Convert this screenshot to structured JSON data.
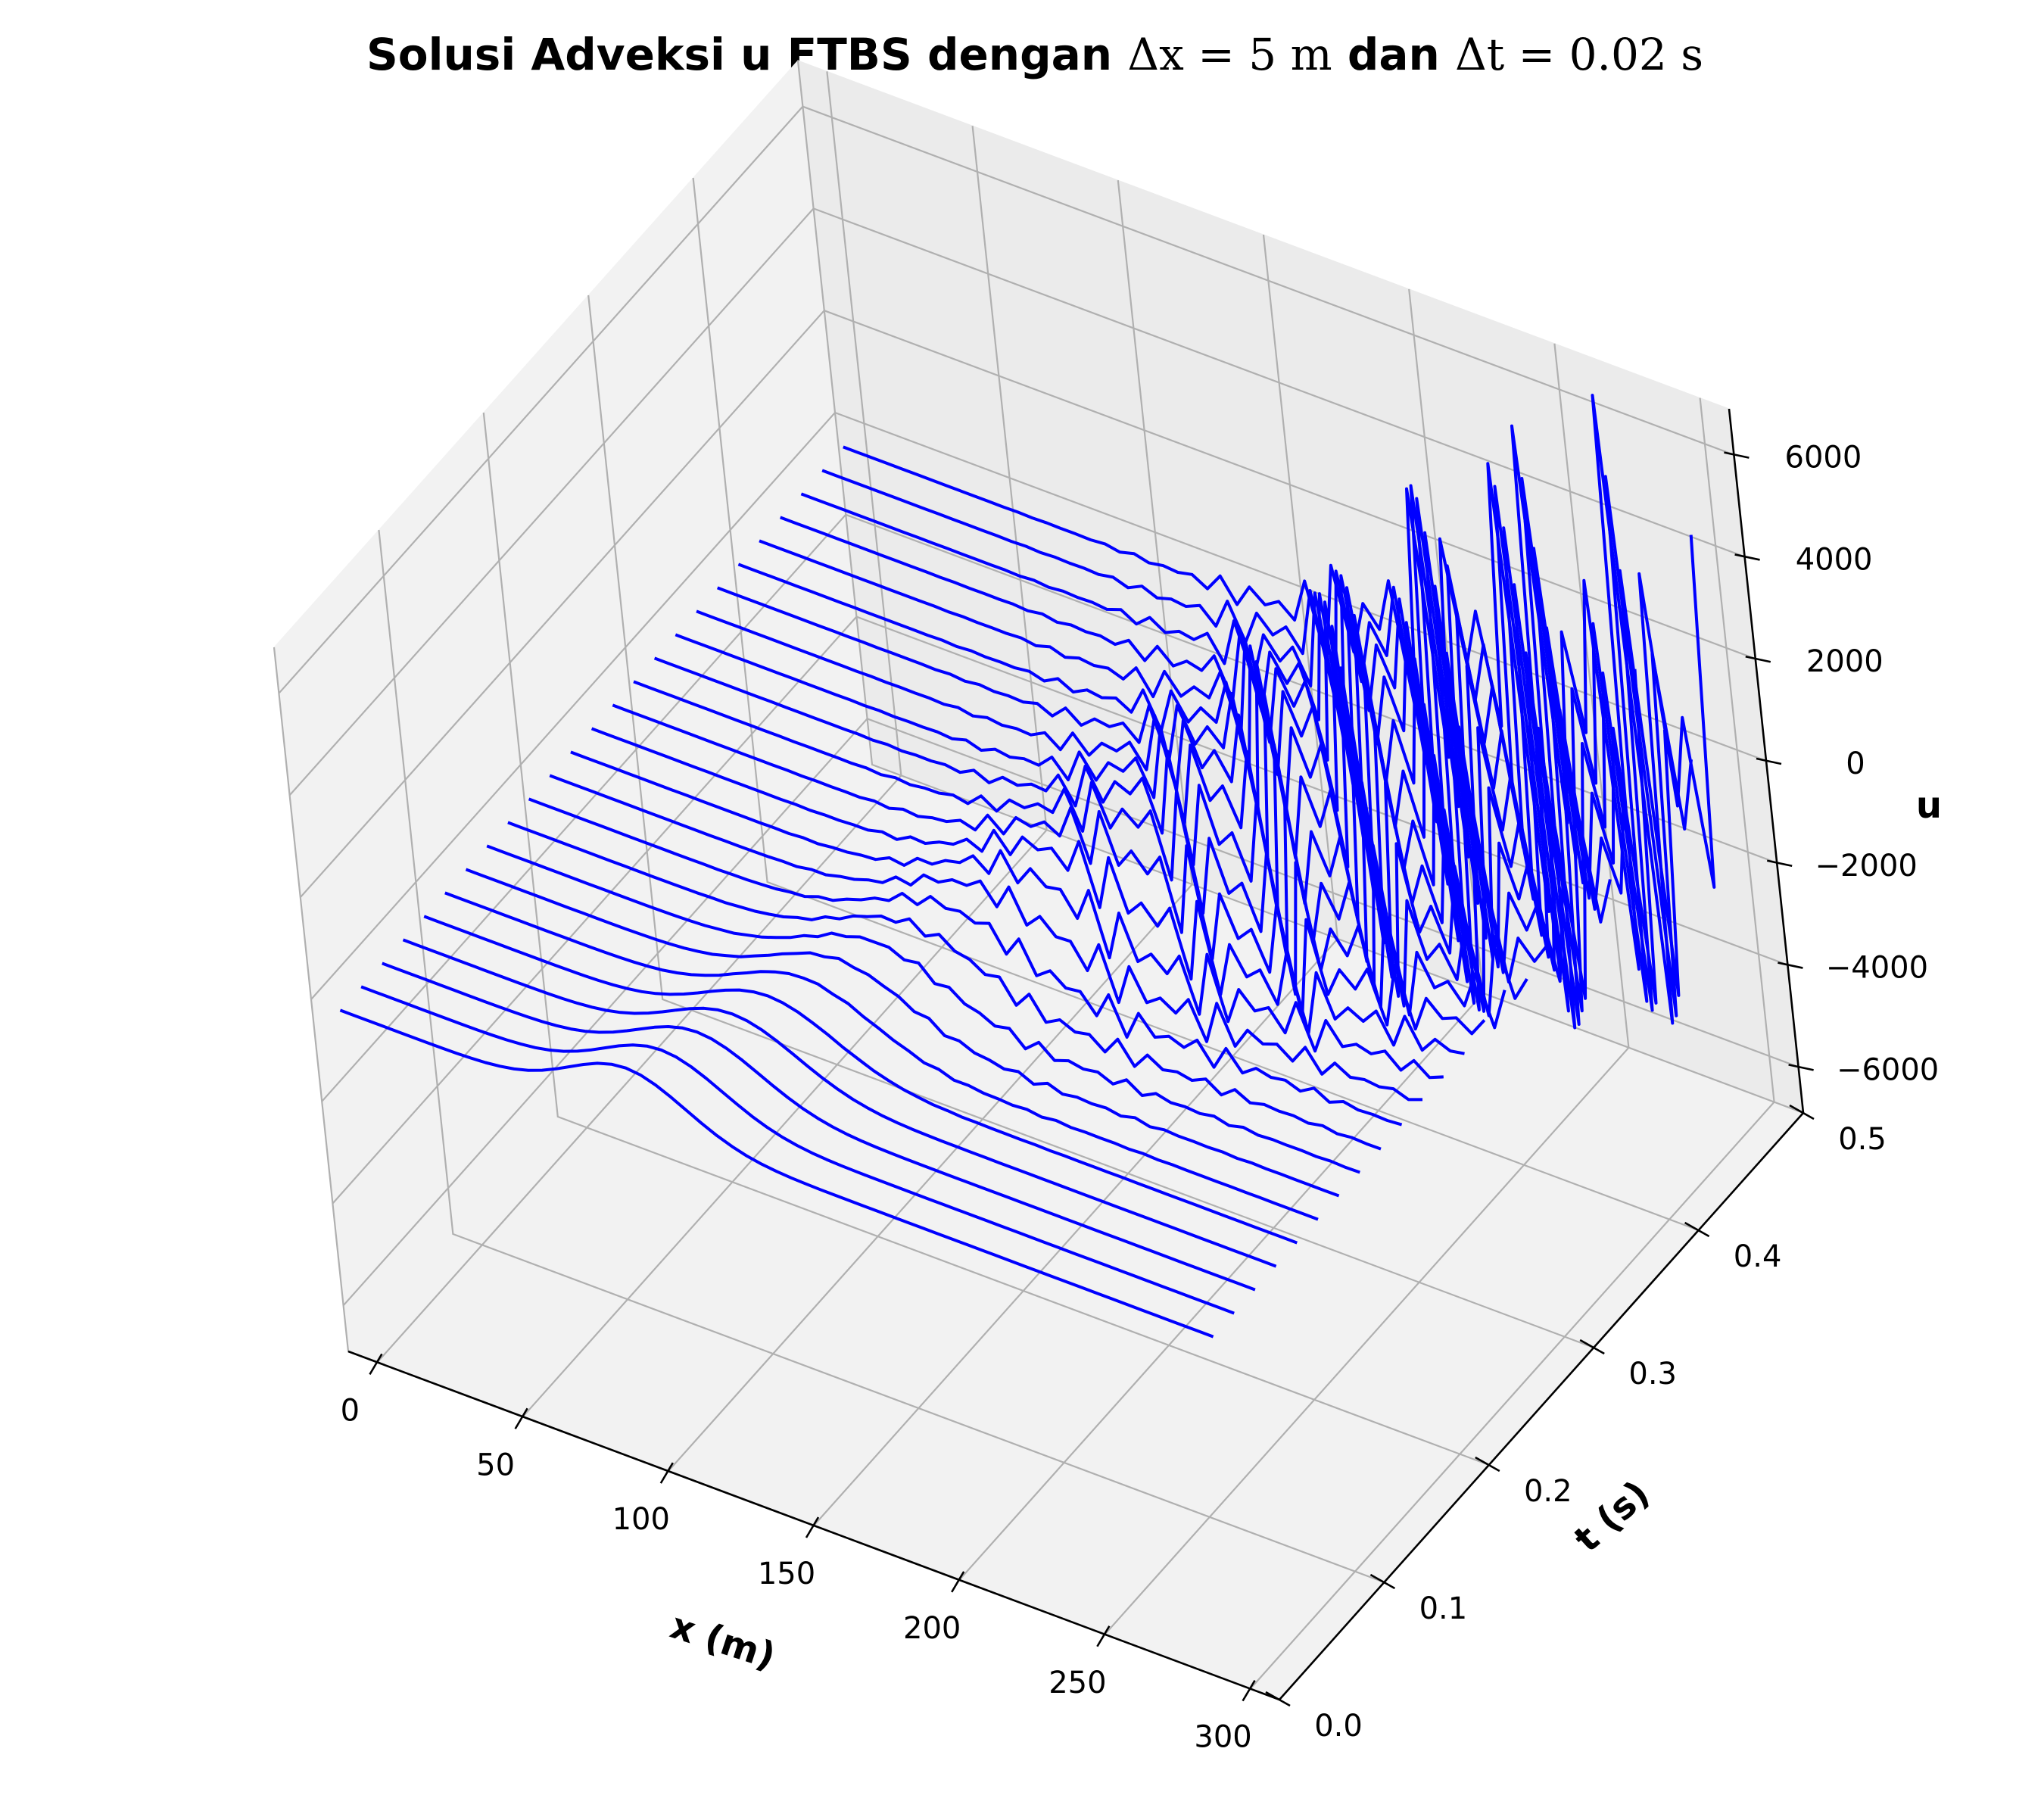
{
  "chart_data": {
    "type": "line",
    "title": {
      "prefix": "Solusi Adveksi u FTBS dengan ",
      "dx_label": "Δx = 5 m",
      "middle": " dan ",
      "dt_label": "Δt = 0.02 s"
    },
    "xlabel": "x (m)",
    "ylabel": "t (s)",
    "zlabel": "u",
    "xlim": [
      -10,
      310
    ],
    "ylim": [
      0,
      0.5
    ],
    "zlim": [
      -6900,
      6900
    ],
    "x_ticks": [
      "0",
      "50",
      "100",
      "150",
      "200",
      "250",
      "300"
    ],
    "y_ticks": [
      "0.0",
      "0.1",
      "0.2",
      "0.3",
      "0.4",
      "0.5"
    ],
    "z_ticks": [
      "−6000",
      "−4000",
      "−2000",
      "0",
      "2000",
      "4000",
      "6000"
    ],
    "grid": true,
    "line_color": "#0000ff",
    "series_style": "one line per time step, t = 0.00 to 0.48 s every 0.02 s, x from 0 to 300 m every 5 m",
    "pulse_center_x_at_t0": 100,
    "pulse_amplitude_at_t0": 1000,
    "advection_speed": 250,
    "peak_oscillation_amplitude": 6500
  }
}
